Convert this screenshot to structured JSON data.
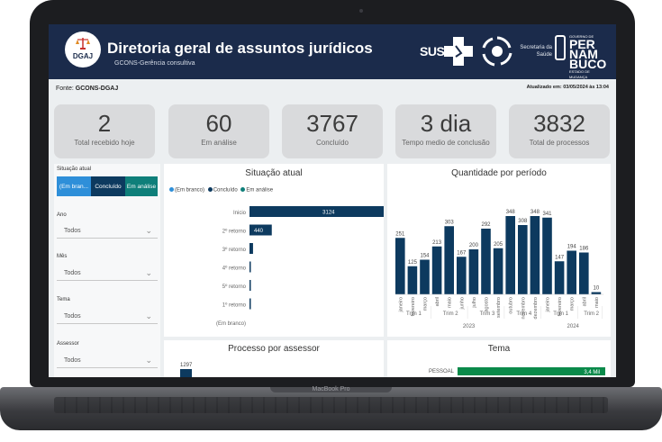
{
  "header": {
    "logo_text": "DGAJ",
    "title": "Diretoria geral de assuntos jurídicos",
    "subtitle": "GCONS-Gerência consultiva",
    "sus": "SUS",
    "secretaria": "Secretaria da Saúde",
    "pernambuco": [
      "PER",
      "NAM",
      "BUCO"
    ],
    "pernambuco_top": "GOVERNO DE",
    "pernambuco_bottom": "ESTADO DE MUDANÇA"
  },
  "fonte_label": "Fonte: ",
  "fonte_value": "GCONS-DGAJ",
  "updated": "Atualizado em: 03/05/2024 às 13:04",
  "kpis": [
    {
      "value": "2",
      "label": "Total recebido hoje"
    },
    {
      "value": "60",
      "label": "Em análise"
    },
    {
      "value": "3767",
      "label": "Concluído"
    },
    {
      "value": "3 dia",
      "label": "Tempo medio de conclusão"
    },
    {
      "value": "3832",
      "label": "Total de processos"
    }
  ],
  "filters": {
    "situacao_label": "Situação atual",
    "situacao_options": [
      "(Em bran...",
      "Concluído",
      "Em análise"
    ],
    "ano_label": "Ano",
    "ano_value": "Todos",
    "mes_label": "Mês",
    "mes_value": "Todos",
    "tema_label": "Tema",
    "tema_value": "Todos",
    "assessor_label": "Assessor",
    "assessor_value": "Todos"
  },
  "colors": {
    "blank": "#2e8fd9",
    "concluido": "#0d3a5f",
    "analise": "#0f7f7a",
    "header": "#1b2b4b"
  },
  "chart_data": [
    {
      "type": "bar",
      "title": "Situação atual",
      "legend": [
        "(Em branco)",
        "Concluído",
        "Em análise"
      ],
      "categories": [
        "Inicio",
        "2º retorno",
        "3º retorno",
        "4º retorno",
        "5º retorno",
        "1º retorno",
        "(Em branco)"
      ],
      "series": [
        {
          "name": "Concluído",
          "values": [
            3124,
            440,
            70,
            25,
            8,
            3,
            0
          ]
        },
        {
          "name": "Em análise",
          "values": [
            35,
            0,
            0,
            0,
            0,
            0,
            0
          ]
        }
      ],
      "data_labels": [
        "3124",
        "440"
      ]
    },
    {
      "type": "bar",
      "title": "Quantidade por período",
      "categories": [
        "janeiro",
        "fevereiro",
        "março",
        "abril",
        "maio",
        "junho",
        "julho",
        "agosto",
        "setembro",
        "outubro",
        "novembro",
        "dezembro",
        "janeiro",
        "fevereiro",
        "março",
        "abril",
        "maio"
      ],
      "values": [
        251,
        125,
        154,
        213,
        303,
        167,
        200,
        292,
        205,
        348,
        308,
        348,
        341,
        147,
        194,
        186,
        10
      ],
      "labels": [
        "251",
        "125",
        "154",
        "213",
        "303",
        "167",
        "200",
        "292",
        "205",
        "348",
        "308",
        "348",
        "341",
        "147",
        "194",
        "186",
        "10"
      ],
      "quarters": [
        "Trim 1",
        "Trim 2",
        "Trim 3",
        "Trim 4",
        "Trim 1",
        "Trim 2"
      ],
      "years": [
        "2023",
        "2024"
      ]
    },
    {
      "type": "bar",
      "title": "Processo por assessor",
      "values": [
        1297
      ],
      "labels": [
        "1297"
      ]
    },
    {
      "type": "bar",
      "title": "Tema",
      "categories": [
        "PESSOAL"
      ],
      "values": [
        3400
      ],
      "labels": [
        "3,4 Mil"
      ]
    }
  ],
  "device_label": "MacBook Pro"
}
